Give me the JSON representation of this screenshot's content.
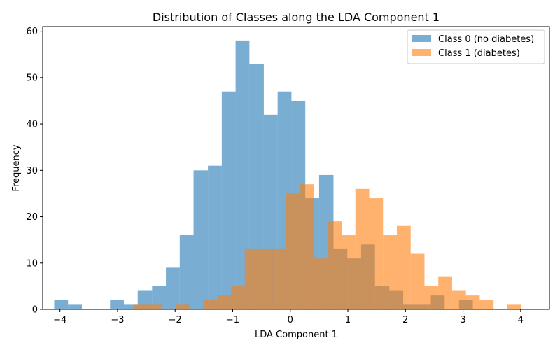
{
  "chart_data": {
    "type": "bar",
    "title": "Distribution of Classes along the LDA Component 1",
    "xlabel": "LDA Component 1",
    "ylabel": "Frequency",
    "xlim": [
      -4.3,
      4.5
    ],
    "ylim": [
      0,
      61
    ],
    "xticks": [
      -4,
      -3,
      -2,
      -1,
      0,
      1,
      2,
      3,
      4
    ],
    "xtick_labels": [
      "−4",
      "−3",
      "−2",
      "−1",
      "0",
      "1",
      "2",
      "3",
      "4"
    ],
    "yticks": [
      0,
      10,
      20,
      30,
      40,
      50,
      60
    ],
    "ytick_labels": [
      "0",
      "10",
      "20",
      "30",
      "40",
      "50",
      "60"
    ],
    "grid": false,
    "legend_position": "top-right",
    "series": [
      {
        "name": "Class 0 (no diabetes)",
        "color": "#1f77b4",
        "opacity": 0.6,
        "bins": [
          [
            -4.1,
            -3.86,
            2
          ],
          [
            -3.86,
            -3.62,
            1
          ],
          [
            -3.13,
            -2.89,
            2
          ],
          [
            -2.89,
            -2.65,
            1
          ],
          [
            -2.65,
            -2.4,
            4
          ],
          [
            -2.4,
            -2.16,
            5
          ],
          [
            -2.16,
            -1.92,
            9
          ],
          [
            -1.92,
            -1.68,
            16
          ],
          [
            -1.68,
            -1.43,
            30
          ],
          [
            -1.43,
            -1.19,
            31
          ],
          [
            -1.19,
            -0.95,
            47
          ],
          [
            -0.95,
            -0.71,
            58
          ],
          [
            -0.71,
            -0.46,
            53
          ],
          [
            -0.46,
            -0.22,
            42
          ],
          [
            -0.22,
            0.02,
            47
          ],
          [
            0.02,
            0.26,
            45
          ],
          [
            0.26,
            0.5,
            24
          ],
          [
            0.5,
            0.75,
            29
          ],
          [
            0.75,
            0.99,
            13
          ],
          [
            0.99,
            1.23,
            11
          ],
          [
            1.23,
            1.47,
            14
          ],
          [
            1.47,
            1.72,
            5
          ],
          [
            1.72,
            1.96,
            4
          ],
          [
            1.96,
            2.2,
            1
          ],
          [
            2.2,
            2.44,
            1
          ],
          [
            2.44,
            2.68,
            3
          ],
          [
            2.68,
            2.93,
            0
          ],
          [
            2.93,
            3.17,
            2
          ]
        ]
      },
      {
        "name": "Class 1 (diabetes)",
        "color": "#ff7f0e",
        "opacity": 0.6,
        "bins": [
          [
            -2.71,
            -2.23,
            1
          ],
          [
            -1.99,
            -1.75,
            1
          ],
          [
            -1.51,
            -1.27,
            2
          ],
          [
            -1.27,
            -1.03,
            3
          ],
          [
            -1.03,
            -0.79,
            5
          ],
          [
            -0.79,
            -0.55,
            13
          ],
          [
            -0.55,
            -0.31,
            13
          ],
          [
            -0.31,
            -0.07,
            13
          ],
          [
            -0.07,
            0.17,
            25
          ],
          [
            0.17,
            0.41,
            27
          ],
          [
            0.41,
            0.65,
            11
          ],
          [
            0.65,
            0.89,
            19
          ],
          [
            0.89,
            1.13,
            16
          ],
          [
            1.13,
            1.37,
            26
          ],
          [
            1.37,
            1.61,
            24
          ],
          [
            1.61,
            1.85,
            16
          ],
          [
            1.85,
            2.09,
            18
          ],
          [
            2.09,
            2.33,
            12
          ],
          [
            2.33,
            2.57,
            5
          ],
          [
            2.57,
            2.81,
            7
          ],
          [
            2.81,
            3.05,
            4
          ],
          [
            3.05,
            3.29,
            3
          ],
          [
            3.29,
            3.53,
            2
          ],
          [
            3.77,
            4.01,
            1
          ]
        ]
      }
    ]
  }
}
